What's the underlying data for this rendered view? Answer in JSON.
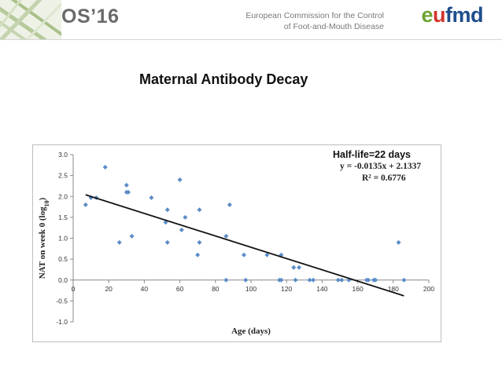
{
  "header": {
    "os_title": "OS’16",
    "commission_line1": "European Commission for the Control",
    "commission_line2": "of Foot-and-Mouth Disease",
    "logo": {
      "part1": "e",
      "part2": "u",
      "part3": "fmd"
    }
  },
  "slide": {
    "title": "Maternal Antibody Decay"
  },
  "colors": {
    "point": "#5b8cc8",
    "trend": "#111111",
    "accent_green": "#6aa531"
  },
  "chart_data": {
    "type": "scatter",
    "title": "",
    "xlabel": "Age (days)",
    "ylabel_main": "NAT on week 0 (log",
    "ylabel_sub": "10",
    "ylabel_end": ")",
    "xlim": [
      0,
      200
    ],
    "ylim": [
      -1.0,
      3.0
    ],
    "x_ticks": [
      0,
      20,
      40,
      60,
      80,
      100,
      120,
      140,
      160,
      180,
      200
    ],
    "y_ticks": [
      3.0,
      2.5,
      2.0,
      1.5,
      1.0,
      0.5,
      0.0,
      -0.5,
      -1.0
    ],
    "y_tick_labels": [
      "3.0",
      "2.5",
      "2.0",
      "1.5",
      "1.0",
      "0.5",
      "0.0",
      "-0.5",
      "-1.0"
    ],
    "points": [
      [
        7,
        1.8
      ],
      [
        10,
        1.97
      ],
      [
        13,
        1.97
      ],
      [
        18,
        2.7
      ],
      [
        26,
        0.9
      ],
      [
        30,
        2.1
      ],
      [
        30,
        2.27
      ],
      [
        31,
        2.1
      ],
      [
        33,
        1.05
      ],
      [
        44,
        1.97
      ],
      [
        52,
        1.38
      ],
      [
        53,
        1.68
      ],
      [
        53,
        0.9
      ],
      [
        60,
        2.4
      ],
      [
        61,
        1.2
      ],
      [
        63,
        1.5
      ],
      [
        70,
        0.6
      ],
      [
        71,
        1.68
      ],
      [
        71,
        0.9
      ],
      [
        86,
        1.05
      ],
      [
        86,
        0.0
      ],
      [
        88,
        1.8
      ],
      [
        96,
        0.6
      ],
      [
        97,
        0.0
      ],
      [
        109,
        0.6
      ],
      [
        116,
        0.0
      ],
      [
        117,
        0.6
      ],
      [
        117,
        0.0
      ],
      [
        124,
        0.3
      ],
      [
        125,
        0.0
      ],
      [
        127,
        0.3
      ],
      [
        133,
        0.0
      ],
      [
        135,
        0.0
      ],
      [
        149,
        0.0
      ],
      [
        151,
        0.0
      ],
      [
        155,
        0.0
      ],
      [
        165,
        0.0
      ],
      [
        166,
        0.0
      ],
      [
        169,
        0.0
      ],
      [
        170,
        0.0
      ],
      [
        183,
        0.9
      ],
      [
        186,
        0.0
      ]
    ],
    "trendline": {
      "slope": -0.0135,
      "intercept": 2.1337,
      "x_start": 7,
      "x_end": 186
    },
    "annotations": {
      "halflife": "Half-life=22 days",
      "equation": "y = -0.0135x + 2.1337",
      "r2": "R² = 0.6776"
    }
  }
}
